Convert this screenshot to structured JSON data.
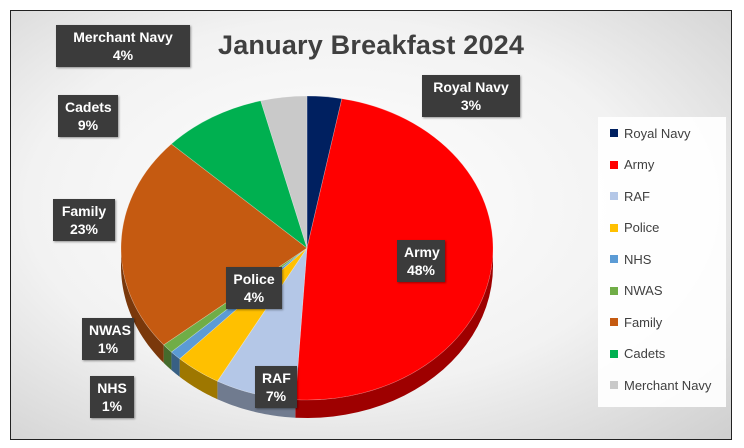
{
  "chart_data": {
    "type": "pie",
    "title": "January Breakfast 2024",
    "slices": [
      {
        "name": "Royal Navy",
        "value": 3,
        "label": "3%",
        "color": "#002060"
      },
      {
        "name": "Army",
        "value": 48,
        "label": "48%",
        "color": "#ff0000"
      },
      {
        "name": "RAF",
        "value": 7,
        "label": "7%",
        "color": "#b4c7e7"
      },
      {
        "name": "Police",
        "value": 4,
        "label": "4%",
        "color": "#ffc000"
      },
      {
        "name": "NHS",
        "value": 1,
        "label": "1%",
        "color": "#5b9bd5"
      },
      {
        "name": "NWAS",
        "value": 1,
        "label": "1%",
        "color": "#70ad47"
      },
      {
        "name": "Family",
        "value": 23,
        "label": "23%",
        "color": "#c55a11"
      },
      {
        "name": "Cadets",
        "value": 9,
        "label": "9%",
        "color": "#00b050"
      },
      {
        "name": "Merchant Navy",
        "value": 4,
        "label": "4%",
        "color": "#c9c9c9"
      }
    ],
    "legend_position": "right"
  }
}
